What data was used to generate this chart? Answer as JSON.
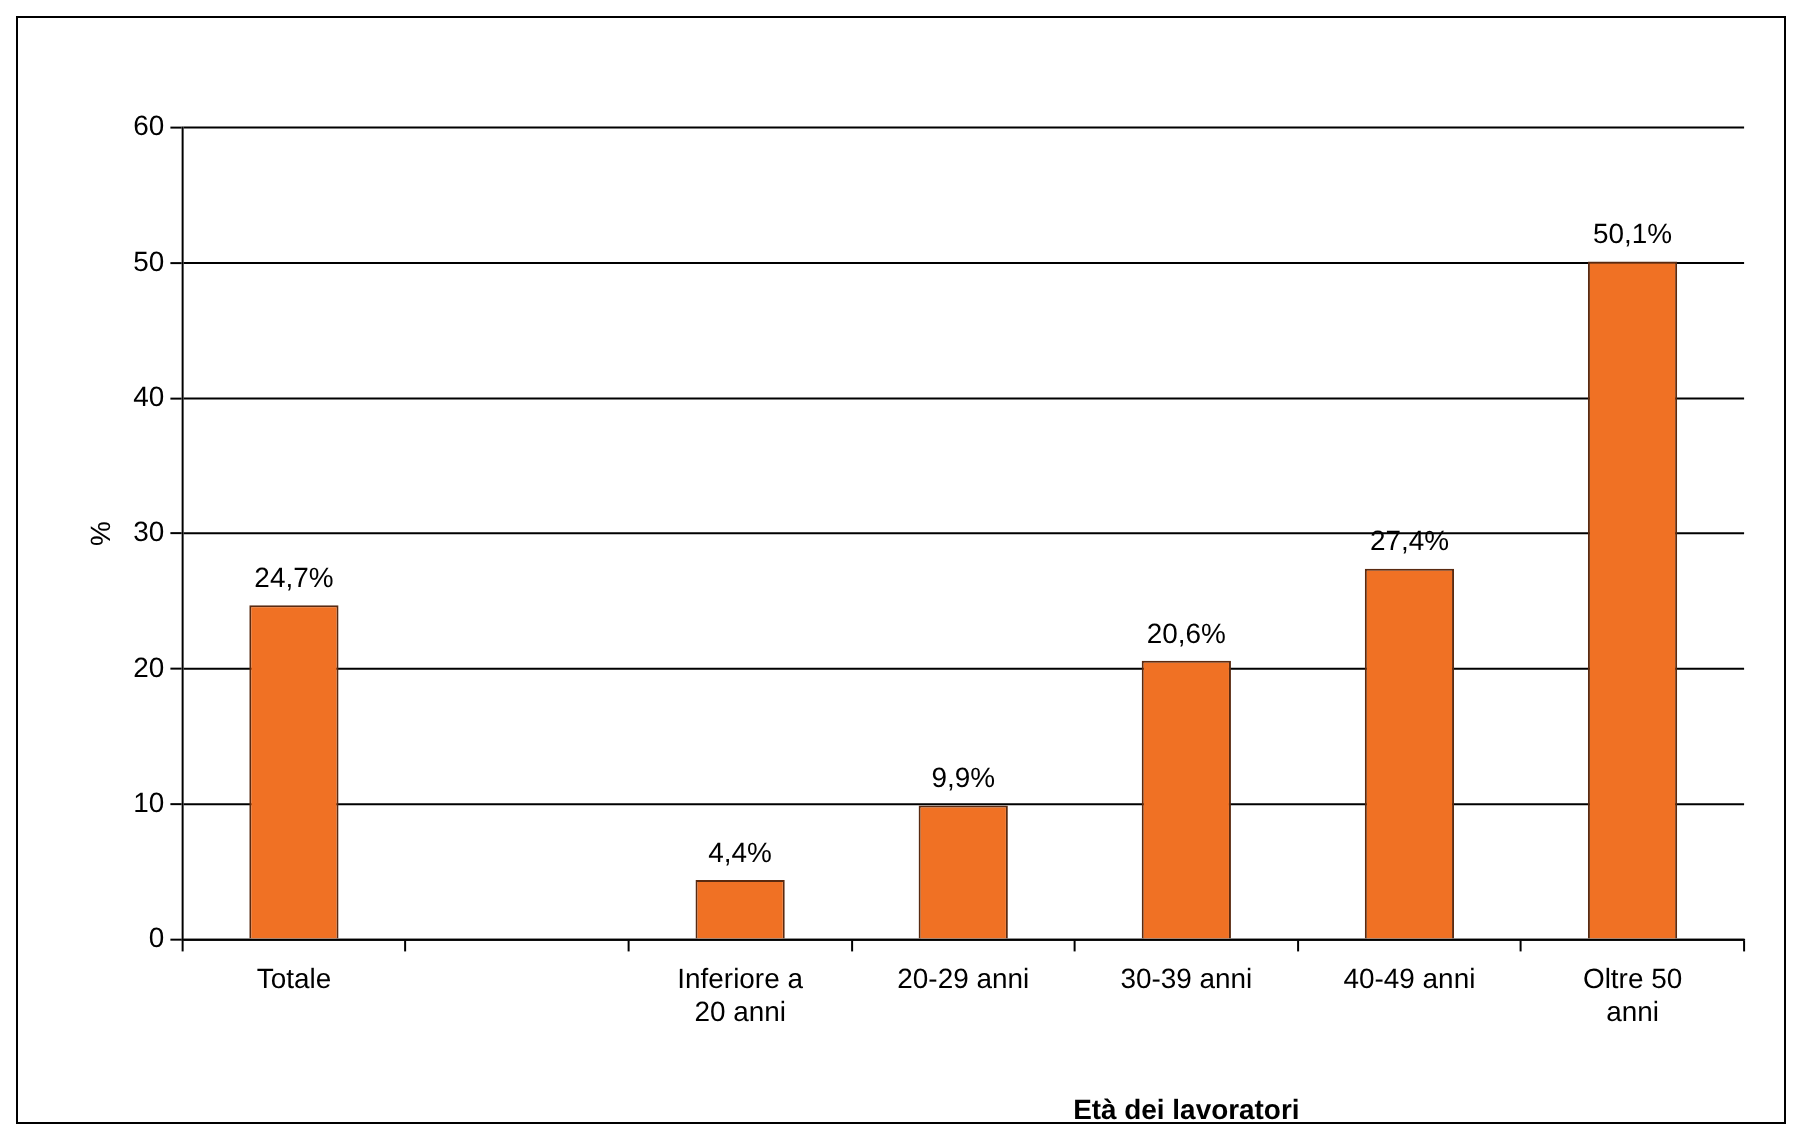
{
  "chart_data": {
    "type": "bar",
    "ylabel": "%",
    "xlabel": "Età dei lavoratori",
    "categories": [
      "Totale",
      null,
      "Inferiore a 20 anni",
      "20-29 anni",
      "30-39 anni",
      "40-49 anni",
      "Oltre 50 anni"
    ],
    "values": [
      24.7,
      null,
      4.4,
      9.9,
      20.6,
      27.4,
      50.1
    ],
    "value_labels": [
      "24,7%",
      null,
      "4,4%",
      "9,9%",
      "20,6%",
      "27,4%",
      "50,1%"
    ],
    "color": "#f07124",
    "ylim": [
      0,
      60
    ],
    "yticks": [
      0,
      10,
      20,
      30,
      40,
      50,
      60
    ],
    "grid": "y",
    "legend": false
  }
}
